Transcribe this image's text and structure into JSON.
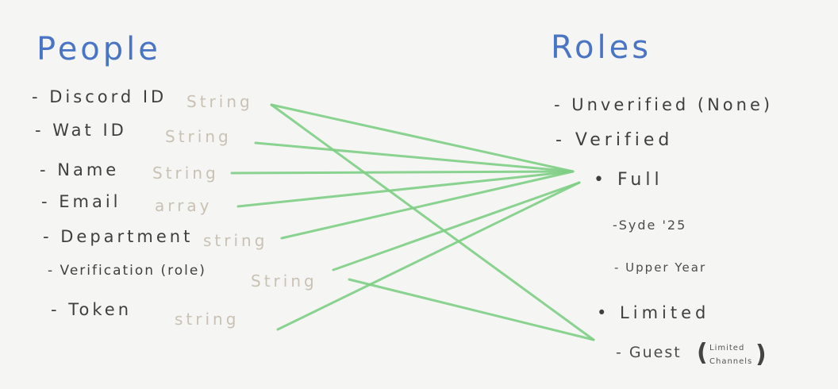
{
  "people": {
    "heading": "People",
    "fields": [
      {
        "label": "- Discord ID",
        "type": "String"
      },
      {
        "label": "- Wat ID",
        "type": "String"
      },
      {
        "label": "- Name",
        "type": "String"
      },
      {
        "label": "- Email",
        "type": "array"
      },
      {
        "label": "- Department",
        "type": "string"
      },
      {
        "label": "- Verification (role)",
        "type": "String"
      },
      {
        "label": "- Token",
        "type": "string"
      }
    ]
  },
  "roles": {
    "heading": "Roles",
    "unverified": "- Unverified (None)",
    "verified": "- Verified",
    "full": "• Full",
    "syde": "-Syde '25",
    "upper_year": "- Upper Year",
    "limited": "• Limited",
    "guest": "- Guest",
    "guest_note_1": "Limited",
    "guest_note_2": "Channels"
  },
  "colors": {
    "heading": "#4a74c4",
    "connector": "#7fcf85",
    "type_text": "#c9c2b4",
    "ink": "#3f3f3f"
  }
}
